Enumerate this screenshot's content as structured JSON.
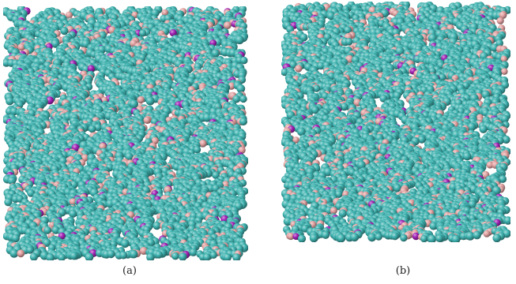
{
  "figure": {
    "panels": [
      {
        "caption": "(a)"
      },
      {
        "caption": "(b)"
      }
    ],
    "colors": {
      "molecule_primary": "#3fb3b0",
      "molecule_secondary": "#e3a2a2",
      "molecule_tertiary": "#a323b7",
      "background": "#ffffff"
    },
    "composition": {
      "primary_fraction": 0.72,
      "secondary_fraction": 0.23,
      "tertiary_fraction": 0.05
    }
  }
}
